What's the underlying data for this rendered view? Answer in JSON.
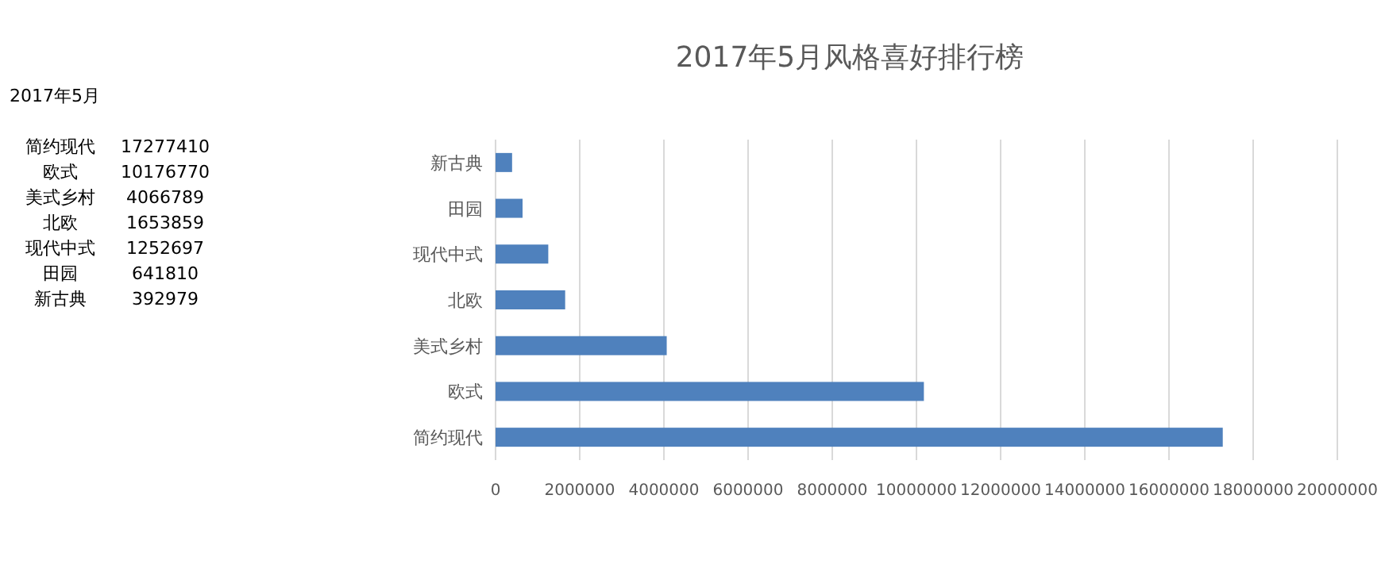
{
  "chart_data": [
    {
      "type": "other",
      "annotations": [
        "2017年5月",
        "简约现代",
        "17277410",
        "欧式",
        "10176770",
        "美式乡村",
        "4066789",
        "北欧",
        "1653859",
        "现代中式",
        "1252697",
        "田园",
        "641810",
        "新古典",
        "392979"
      ]
    },
    {
      "type": "bar",
      "orientation": "horizontal",
      "title": "2017年5月风格喜好排行榜",
      "categories": [
        "新古典",
        "田园",
        "现代中式",
        "北欧",
        "美式乡村",
        "欧式",
        "简约现代"
      ],
      "values": [
        392979,
        641810,
        1252697,
        1653859,
        4066789,
        10176770,
        17277410
      ],
      "color": "#4f81bd",
      "xlim": [
        0,
        20000000
      ],
      "xticks": [
        0,
        2000000,
        4000000,
        6000000,
        8000000,
        10000000,
        12000000,
        14000000,
        16000000,
        18000000,
        20000000
      ],
      "grid": "x"
    }
  ]
}
